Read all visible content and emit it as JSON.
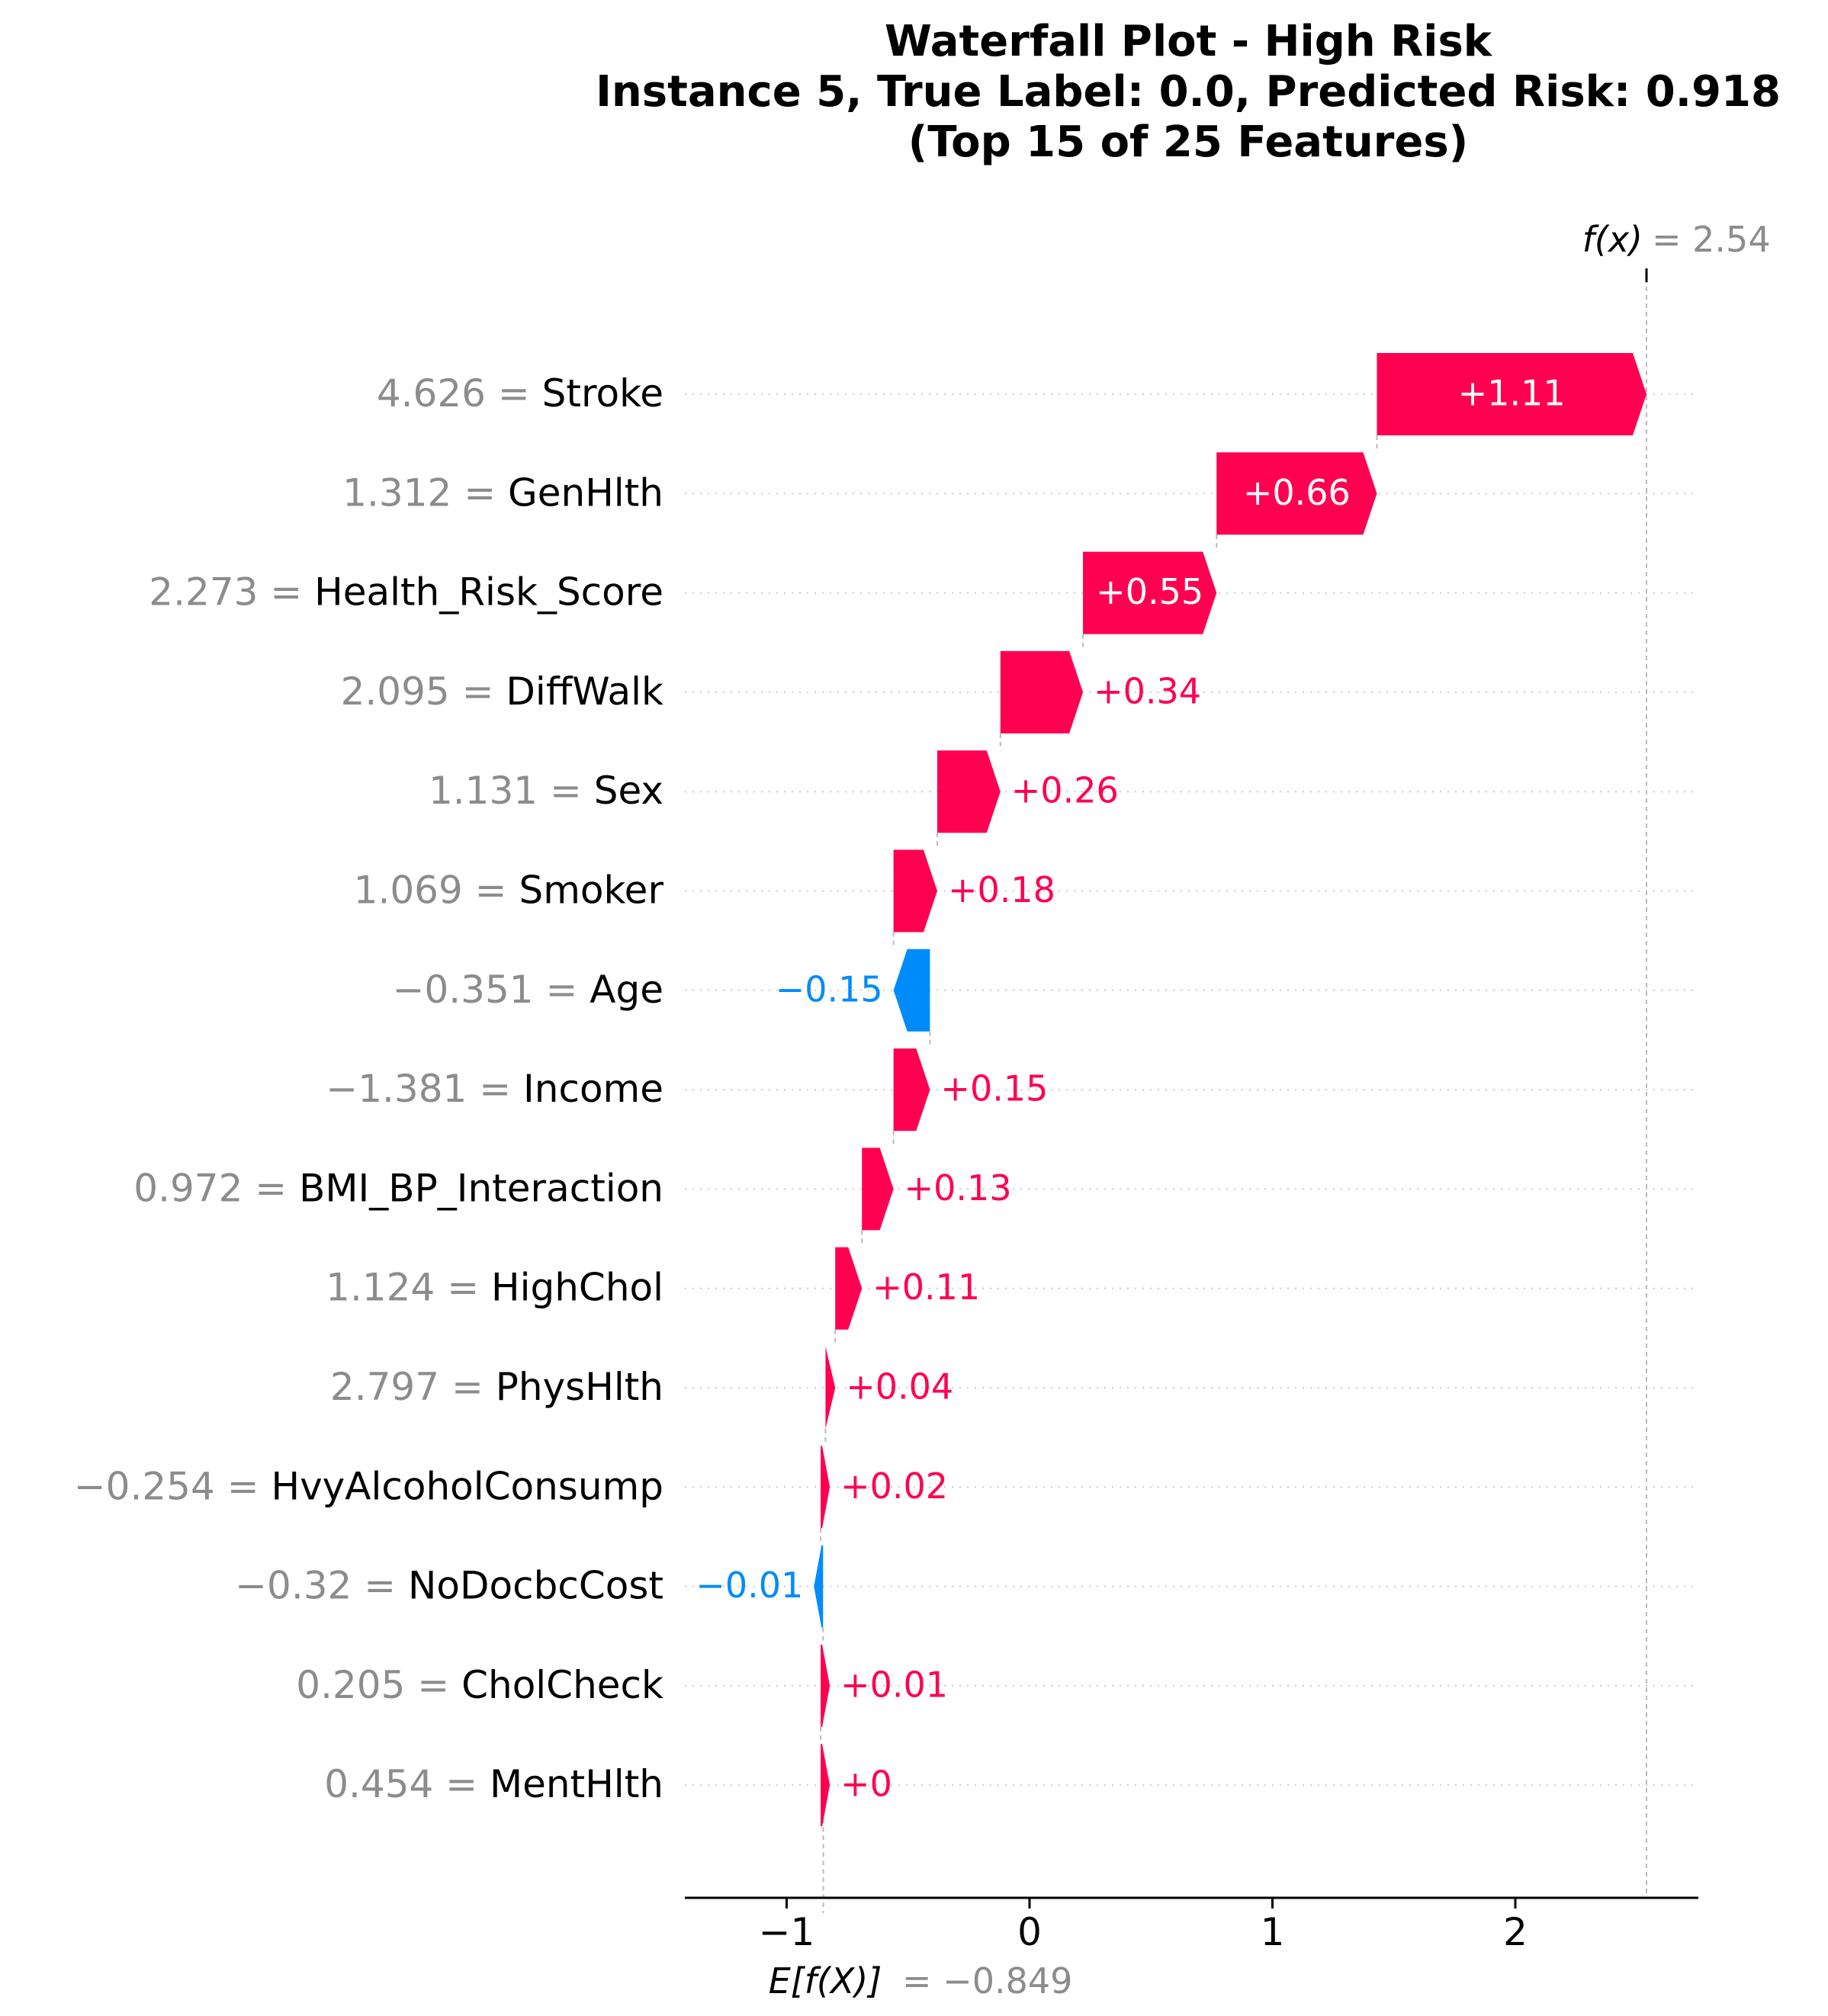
{
  "title_lines": [
    "Waterfall Plot - High Risk",
    "Instance 5, True Label: 0.0, Predicted Risk: 0.918",
    "(Top 15 of 25 Features)"
  ],
  "annotations": {
    "fx_label": "f(x)",
    "fx_eq": "= 2.54",
    "efx_label": "E[f(X)]",
    "efx_eq": "= −0.849"
  },
  "colors": {
    "positive": "#ff0051",
    "negative": "#008bfb",
    "grid": "#cccccc",
    "value_text": "#8c8c8c"
  },
  "chart_data": {
    "type": "bar",
    "subtype": "waterfall",
    "title": "Waterfall Plot - High Risk\nInstance 5, True Label: 0.0, Predicted Risk: 0.918\n(Top 15 of 25 Features)",
    "base_value": -0.849,
    "output_value": 2.54,
    "xlim": [
      -1.4,
      2.75
    ],
    "xticks": [
      -1,
      0,
      1,
      2
    ],
    "xtick_labels": [
      "−1",
      "0",
      "1",
      "2"
    ],
    "features": [
      {
        "name": "Stroke",
        "value": "4.626",
        "contribution": 1.11,
        "label": "+1.11"
      },
      {
        "name": "GenHlth",
        "value": "1.312",
        "contribution": 0.66,
        "label": "+0.66"
      },
      {
        "name": "Health_Risk_Score",
        "value": "2.273",
        "contribution": 0.55,
        "label": "+0.55"
      },
      {
        "name": "DiffWalk",
        "value": "2.095",
        "contribution": 0.34,
        "label": "+0.34"
      },
      {
        "name": "Sex",
        "value": "1.131",
        "contribution": 0.26,
        "label": "+0.26"
      },
      {
        "name": "Smoker",
        "value": "1.069",
        "contribution": 0.18,
        "label": "+0.18"
      },
      {
        "name": "Age",
        "value": "−0.351",
        "contribution": -0.15,
        "label": "−0.15"
      },
      {
        "name": "Income",
        "value": "−1.381",
        "contribution": 0.15,
        "label": "+0.15"
      },
      {
        "name": "BMI_BP_Interaction",
        "value": "0.972",
        "contribution": 0.13,
        "label": "+0.13"
      },
      {
        "name": "HighChol",
        "value": "1.124",
        "contribution": 0.11,
        "label": "+0.11"
      },
      {
        "name": "PhysHlth",
        "value": "2.797",
        "contribution": 0.04,
        "label": "+0.04"
      },
      {
        "name": "HvyAlcoholConsump",
        "value": "−0.254",
        "contribution": 0.02,
        "label": "+0.02"
      },
      {
        "name": "NoDocbcCost",
        "value": "−0.32",
        "contribution": -0.01,
        "label": "−0.01"
      },
      {
        "name": "CholCheck",
        "value": "0.205",
        "contribution": 0.01,
        "label": "+0.01"
      },
      {
        "name": "MentHlth",
        "value": "0.454",
        "contribution": 0.0,
        "label": "+0"
      }
    ]
  }
}
